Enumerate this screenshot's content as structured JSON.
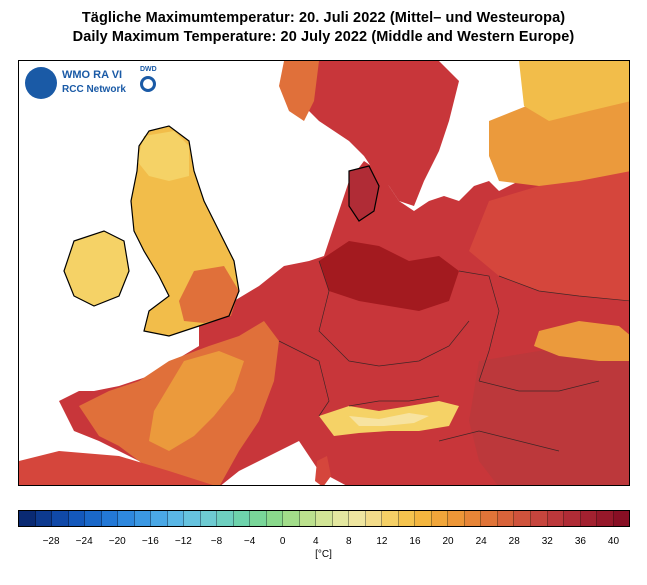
{
  "title_de": "Tägliche Maximumtemperatur:  20. Juli 2022  (Mittel– und Westeuropa)",
  "title_en": "Daily Maximum Temperature:  20 July 2022  (Middle and Western Europe)",
  "logo": {
    "org": "WMO RA VI",
    "network": "RCC Network",
    "partner": "DWD",
    "icon": "wmo-globe-icon"
  },
  "map": {
    "region": "Middle and Western Europe",
    "variable": "Daily maximum temperature",
    "date": "2022-07-20",
    "land_colors": {
      "very_hot": "#a31a1f",
      "hot": "#c8363a",
      "warm_hot": "#d5463c",
      "warm": "#e0703a",
      "mild": "#eb9a3c",
      "cool": "#f2bd4a",
      "cooler": "#f5d266",
      "alpine_cold": "#f7e3a0"
    }
  },
  "legend": {
    "unit": "[°C]",
    "tick_labels": [
      "-28",
      "-24",
      "-20",
      "-16",
      "-12",
      "-8",
      "-4",
      "0",
      "4",
      "8",
      "12",
      "16",
      "20",
      "24",
      "28",
      "32",
      "36",
      "40"
    ],
    "range": [
      -32,
      42
    ],
    "bins": 37,
    "colors": [
      "#0a2a73",
      "#0d3a8f",
      "#1049a8",
      "#1458bb",
      "#1a68c9",
      "#2378d6",
      "#2e88de",
      "#3b98e3",
      "#4aa8e6",
      "#5ab7e6",
      "#66c3df",
      "#6ecbd2",
      "#6ed0c0",
      "#6ed3ac",
      "#79d699",
      "#8ad98c",
      "#a2dd8a",
      "#bce18e",
      "#d2e596",
      "#e4e8a0",
      "#efe6a0",
      "#f3dc8a",
      "#f5d066",
      "#f5c44e",
      "#f4b63f",
      "#f1a63a",
      "#ed9637",
      "#e78537",
      "#e07438",
      "#d8633a",
      "#cf533c",
      "#c6453d",
      "#bc383b",
      "#b02c36",
      "#a32130",
      "#96182a",
      "#880f24"
    ]
  }
}
